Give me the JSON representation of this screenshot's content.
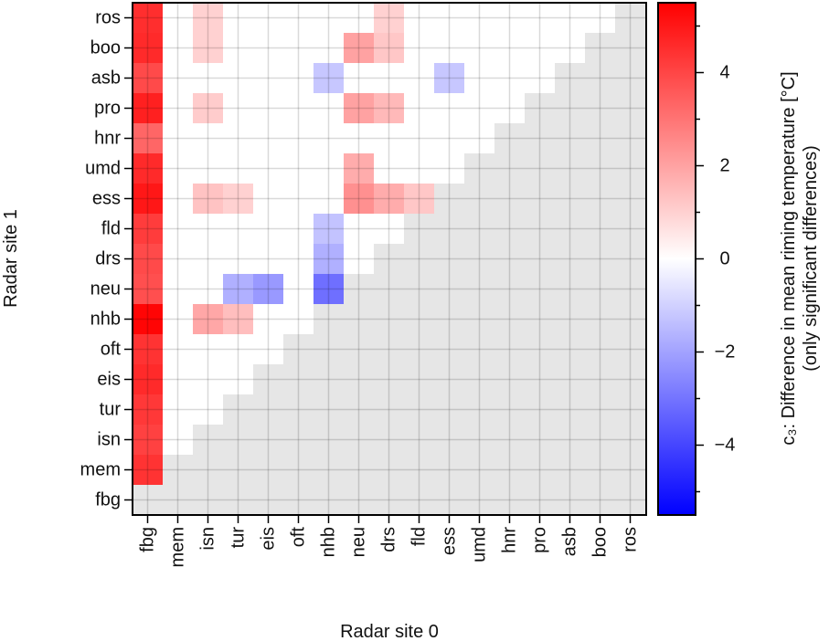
{
  "chart_data": {
    "type": "heatmap",
    "xlabel": "Radar site 0",
    "ylabel": "Radar site 1",
    "x_categories": [
      "fbg",
      "mem",
      "isn",
      "tur",
      "eis",
      "oft",
      "nhb",
      "neu",
      "drs",
      "fld",
      "ess",
      "umd",
      "hnr",
      "pro",
      "asb",
      "boo",
      "ros"
    ],
    "y_categories": [
      "ros",
      "boo",
      "asb",
      "pro",
      "hnr",
      "umd",
      "ess",
      "fld",
      "drs",
      "neu",
      "nhb",
      "oft",
      "eis",
      "tur",
      "isn",
      "mem",
      "fbg"
    ],
    "colorbar": {
      "label_line1": "c₃: Difference in mean riming temperature [°C]",
      "label_line2": "(only significant differences)",
      "vmin": -5.5,
      "vmax": 5.5,
      "ticks": [
        4,
        2,
        0,
        -2,
        -4
      ],
      "tick_labels": [
        "4",
        "2",
        "0",
        "−2",
        "−4"
      ],
      "colormap": "bwr"
    },
    "masked_color": "#e6e6e6",
    "grid": true,
    "note_values": "null = cell outside lower triangle (grey); 0 = not significant (white)",
    "values": [
      [
        4.5,
        0,
        1.0,
        0,
        0,
        0,
        0,
        0,
        1.0,
        0,
        0,
        0,
        0,
        0,
        0,
        0,
        null
      ],
      [
        4.6,
        0,
        1.0,
        0,
        0,
        0,
        0,
        2.0,
        1.2,
        0,
        0,
        0,
        0,
        0,
        0,
        null,
        null
      ],
      [
        3.9,
        0,
        0,
        0,
        0,
        0,
        -1.2,
        0,
        0,
        0,
        -1.2,
        0,
        0,
        0,
        null,
        null,
        null
      ],
      [
        4.8,
        0,
        1.1,
        0,
        0,
        0,
        0,
        2.0,
        1.5,
        0,
        0,
        0,
        0,
        null,
        null,
        null,
        null
      ],
      [
        3.3,
        0,
        0,
        0,
        0,
        0,
        0,
        0,
        0,
        0,
        0,
        0,
        null,
        null,
        null,
        null,
        null
      ],
      [
        4.6,
        0,
        0,
        0,
        0,
        0,
        0,
        1.8,
        0,
        0,
        0,
        null,
        null,
        null,
        null,
        null,
        null
      ],
      [
        5.0,
        0,
        1.3,
        1.0,
        0,
        0,
        0,
        2.4,
        1.8,
        1.2,
        null,
        null,
        null,
        null,
        null,
        null,
        null
      ],
      [
        4.2,
        0,
        0,
        0,
        0,
        0,
        -1.3,
        0,
        0,
        null,
        null,
        null,
        null,
        null,
        null,
        null,
        null
      ],
      [
        3.9,
        0,
        0,
        0,
        0,
        0,
        -1.7,
        0,
        null,
        null,
        null,
        null,
        null,
        null,
        null,
        null,
        null
      ],
      [
        3.8,
        0,
        0,
        -1.7,
        -2.2,
        0,
        -3.1,
        null,
        null,
        null,
        null,
        null,
        null,
        null,
        null,
        null,
        null
      ],
      [
        5.4,
        0,
        1.9,
        1.4,
        0,
        0,
        null,
        null,
        null,
        null,
        null,
        null,
        null,
        null,
        null,
        null,
        null
      ],
      [
        4.4,
        0,
        0,
        0,
        0,
        null,
        null,
        null,
        null,
        null,
        null,
        null,
        null,
        null,
        null,
        null,
        null
      ],
      [
        4.6,
        0,
        0,
        0,
        null,
        null,
        null,
        null,
        null,
        null,
        null,
        null,
        null,
        null,
        null,
        null,
        null
      ],
      [
        4.3,
        0,
        0,
        null,
        null,
        null,
        null,
        null,
        null,
        null,
        null,
        null,
        null,
        null,
        null,
        null,
        null
      ],
      [
        4.1,
        0,
        null,
        null,
        null,
        null,
        null,
        null,
        null,
        null,
        null,
        null,
        null,
        null,
        null,
        null,
        null
      ],
      [
        4.4,
        null,
        null,
        null,
        null,
        null,
        null,
        null,
        null,
        null,
        null,
        null,
        null,
        null,
        null,
        null,
        null
      ],
      [
        null,
        null,
        null,
        null,
        null,
        null,
        null,
        null,
        null,
        null,
        null,
        null,
        null,
        null,
        null,
        null,
        null
      ]
    ]
  }
}
